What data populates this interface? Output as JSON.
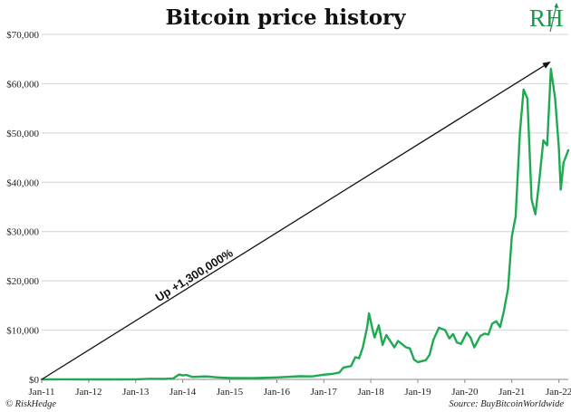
{
  "colors": {
    "line": "#1faa52",
    "grid": "#d4d4d4",
    "axis": "#888888",
    "text": "#222222",
    "logo": "#1a9a4a"
  },
  "logo": {
    "text": "RH"
  },
  "footer": {
    "left": "© RiskHedge",
    "right": "Source: BuyBitcoinWorldwide"
  },
  "chart_data": {
    "type": "line",
    "title": "Bitcoin price history",
    "xlabel": "",
    "ylabel": "",
    "ylim": [
      0,
      70000
    ],
    "xlim": [
      2011.0,
      2022.2
    ],
    "grid": true,
    "yticks": [
      {
        "value": 0,
        "label": "$0"
      },
      {
        "value": 10000,
        "label": "$10,000"
      },
      {
        "value": 20000,
        "label": "$20,000"
      },
      {
        "value": 30000,
        "label": "$30,000"
      },
      {
        "value": 40000,
        "label": "$40,000"
      },
      {
        "value": 50000,
        "label": "$50,000"
      },
      {
        "value": 60000,
        "label": "$60,000"
      },
      {
        "value": 70000,
        "label": "$70,000"
      }
    ],
    "xticks": [
      {
        "value": 2011,
        "label": "Jan-11"
      },
      {
        "value": 2012,
        "label": "Jan-12"
      },
      {
        "value": 2013,
        "label": "Jan-13"
      },
      {
        "value": 2014,
        "label": "Jan-14"
      },
      {
        "value": 2015,
        "label": "Jan-15"
      },
      {
        "value": 2016,
        "label": "Jan-16"
      },
      {
        "value": 2017,
        "label": "Jan-17"
      },
      {
        "value": 2018,
        "label": "Jan-18"
      },
      {
        "value": 2019,
        "label": "Jan-19"
      },
      {
        "value": 2020,
        "label": "Jan-20"
      },
      {
        "value": 2021,
        "label": "Jan-21"
      },
      {
        "value": 2022,
        "label": "Jan-22"
      }
    ],
    "series": [
      {
        "name": "Bitcoin price",
        "points": [
          [
            2011.0,
            0
          ],
          [
            2011.5,
            15
          ],
          [
            2012.0,
            5
          ],
          [
            2012.5,
            7
          ],
          [
            2013.0,
            15
          ],
          [
            2013.3,
            120
          ],
          [
            2013.6,
            100
          ],
          [
            2013.8,
            200
          ],
          [
            2013.92,
            1000
          ],
          [
            2014.0,
            800
          ],
          [
            2014.08,
            900
          ],
          [
            2014.2,
            500
          ],
          [
            2014.5,
            600
          ],
          [
            2014.75,
            400
          ],
          [
            2015.0,
            300
          ],
          [
            2015.5,
            250
          ],
          [
            2016.0,
            400
          ],
          [
            2016.5,
            650
          ],
          [
            2016.75,
            600
          ],
          [
            2017.0,
            950
          ],
          [
            2017.17,
            1100
          ],
          [
            2017.33,
            1400
          ],
          [
            2017.42,
            2400
          ],
          [
            2017.58,
            2700
          ],
          [
            2017.67,
            4500
          ],
          [
            2017.75,
            4300
          ],
          [
            2017.83,
            6500
          ],
          [
            2017.92,
            10500
          ],
          [
            2017.96,
            13400
          ],
          [
            2018.04,
            10000
          ],
          [
            2018.08,
            8500
          ],
          [
            2018.17,
            11000
          ],
          [
            2018.25,
            7000
          ],
          [
            2018.33,
            9000
          ],
          [
            2018.5,
            6500
          ],
          [
            2018.58,
            7800
          ],
          [
            2018.75,
            6500
          ],
          [
            2018.83,
            6300
          ],
          [
            2018.92,
            4000
          ],
          [
            2019.0,
            3500
          ],
          [
            2019.17,
            3900
          ],
          [
            2019.25,
            5000
          ],
          [
            2019.33,
            8000
          ],
          [
            2019.45,
            10500
          ],
          [
            2019.58,
            10000
          ],
          [
            2019.67,
            8300
          ],
          [
            2019.75,
            9200
          ],
          [
            2019.83,
            7500
          ],
          [
            2019.92,
            7200
          ],
          [
            2020.04,
            9500
          ],
          [
            2020.12,
            8500
          ],
          [
            2020.2,
            6500
          ],
          [
            2020.33,
            8800
          ],
          [
            2020.42,
            9300
          ],
          [
            2020.5,
            9100
          ],
          [
            2020.58,
            11300
          ],
          [
            2020.67,
            11800
          ],
          [
            2020.75,
            10600
          ],
          [
            2020.83,
            13800
          ],
          [
            2020.92,
            18500
          ],
          [
            2021.0,
            29000
          ],
          [
            2021.08,
            33000
          ],
          [
            2021.17,
            50000
          ],
          [
            2021.25,
            58800
          ],
          [
            2021.33,
            57000
          ],
          [
            2021.42,
            36500
          ],
          [
            2021.5,
            33500
          ],
          [
            2021.58,
            40000
          ],
          [
            2021.67,
            48500
          ],
          [
            2021.75,
            47500
          ],
          [
            2021.83,
            63000
          ],
          [
            2021.92,
            57000
          ],
          [
            2022.0,
            47000
          ],
          [
            2022.04,
            38500
          ],
          [
            2022.1,
            44000
          ],
          [
            2022.2,
            46500
          ]
        ]
      }
    ],
    "annotations": [
      {
        "text": "Up +1,300,000%",
        "type": "arrow",
        "from": [
          2011.0,
          0
        ],
        "to": [
          2021.83,
          64500
        ]
      }
    ]
  }
}
